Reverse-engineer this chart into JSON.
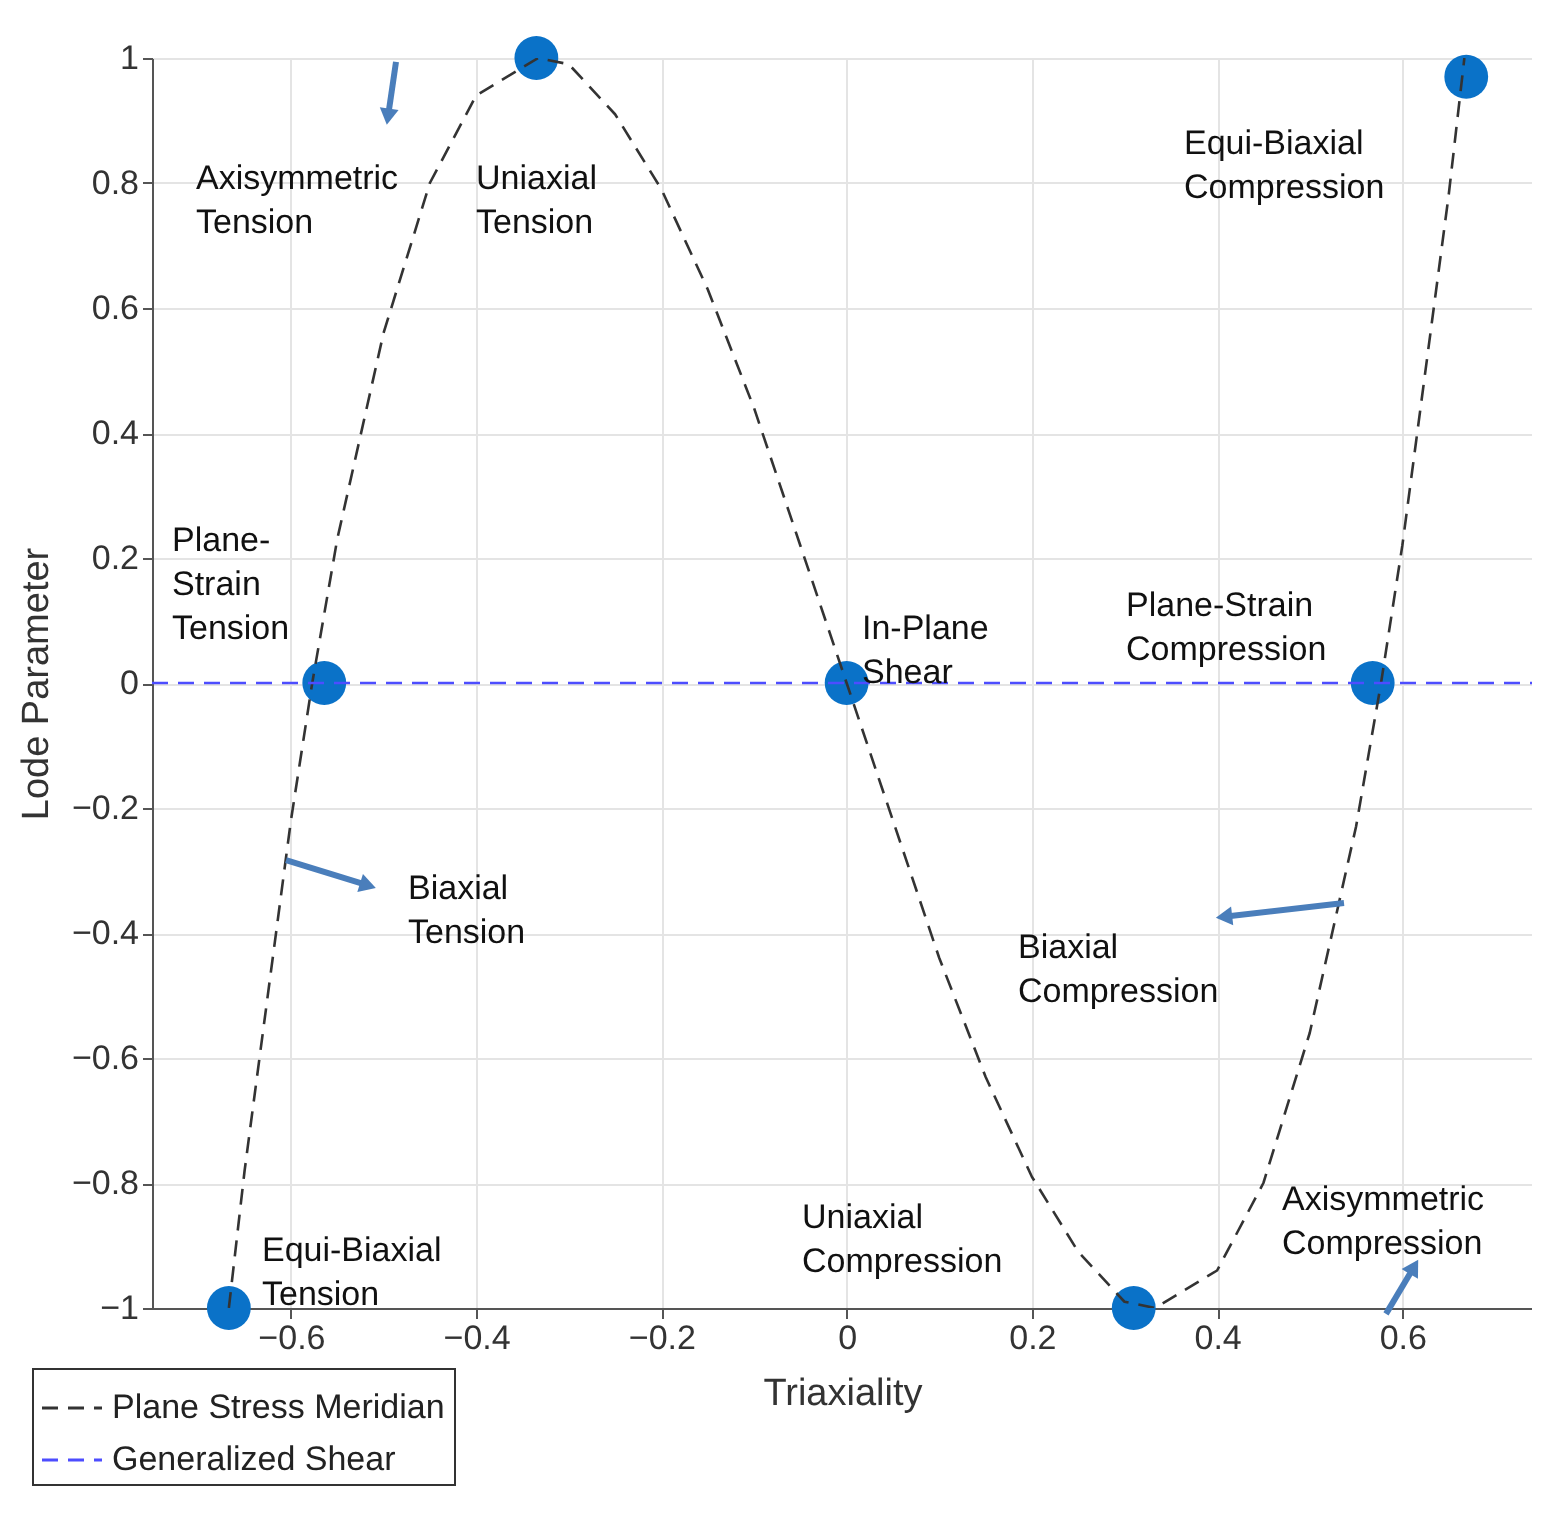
{
  "chart_data": {
    "type": "line",
    "xlabel": "Triaxiality",
    "ylabel": "Lode Parameter",
    "xlim": [
      -0.75,
      0.74
    ],
    "ylim": [
      -1,
      1
    ],
    "xticks": [
      -0.6,
      -0.4,
      -0.2,
      0,
      0.2,
      0.4,
      0.6
    ],
    "yticks": [
      -1,
      -0.8,
      -0.6,
      -0.4,
      -0.2,
      0,
      0.2,
      0.4,
      0.6,
      0.8,
      1
    ],
    "grid": true,
    "legend": "bottom left",
    "series": [
      {
        "name": "Plane Stress Meridian",
        "color": "#333333",
        "line_style": "dashed",
        "x": [
          -0.667,
          -0.65,
          -0.6,
          -0.577,
          -0.55,
          -0.5,
          -0.45,
          -0.4,
          -0.333,
          -0.3,
          -0.25,
          -0.2,
          -0.15,
          -0.1,
          -0.05,
          0,
          0.05,
          0.1,
          0.15,
          0.2,
          0.25,
          0.3,
          0.333,
          0.4,
          0.45,
          0.5,
          0.55,
          0.577,
          0.6,
          0.65,
          0.667
        ],
        "values": [
          -1,
          -0.78,
          -0.22,
          0,
          0.23,
          0.56,
          0.8,
          0.94,
          1,
          0.99,
          0.91,
          0.79,
          0.63,
          0.44,
          0.22,
          0,
          -0.22,
          -0.44,
          -0.63,
          -0.79,
          -0.91,
          -0.99,
          -1,
          -0.94,
          -0.8,
          -0.56,
          -0.23,
          0,
          0.22,
          0.78,
          1
        ]
      },
      {
        "name": "Generalized Shear",
        "color": "#4d4dff",
        "line_style": "dashed",
        "x": [
          -0.75,
          0.74
        ],
        "values": [
          0,
          0
        ]
      },
      {
        "type": "scatter",
        "color": "#0a72c8",
        "marker": "circle",
        "x": [
          -0.667,
          -0.564,
          -0.335,
          0,
          0.31,
          0.568,
          0.669
        ],
        "values": [
          -1,
          0,
          1,
          0,
          -1,
          0,
          0.97
        ]
      }
    ],
    "annotations": [
      "Axisymmetric\nTension",
      "Uniaxial\nTension",
      "Equi-Biaxial\nCompression",
      "Plane-\nStrain\nTension",
      "In-Plane\nShear",
      "Plane-Strain\nCompression",
      "Biaxial\nTension",
      "Biaxial\nCompression",
      "Uniaxial\nCompression",
      "Equi-Biaxial\nTension",
      "Axisymmetric\nCompression"
    ]
  }
}
